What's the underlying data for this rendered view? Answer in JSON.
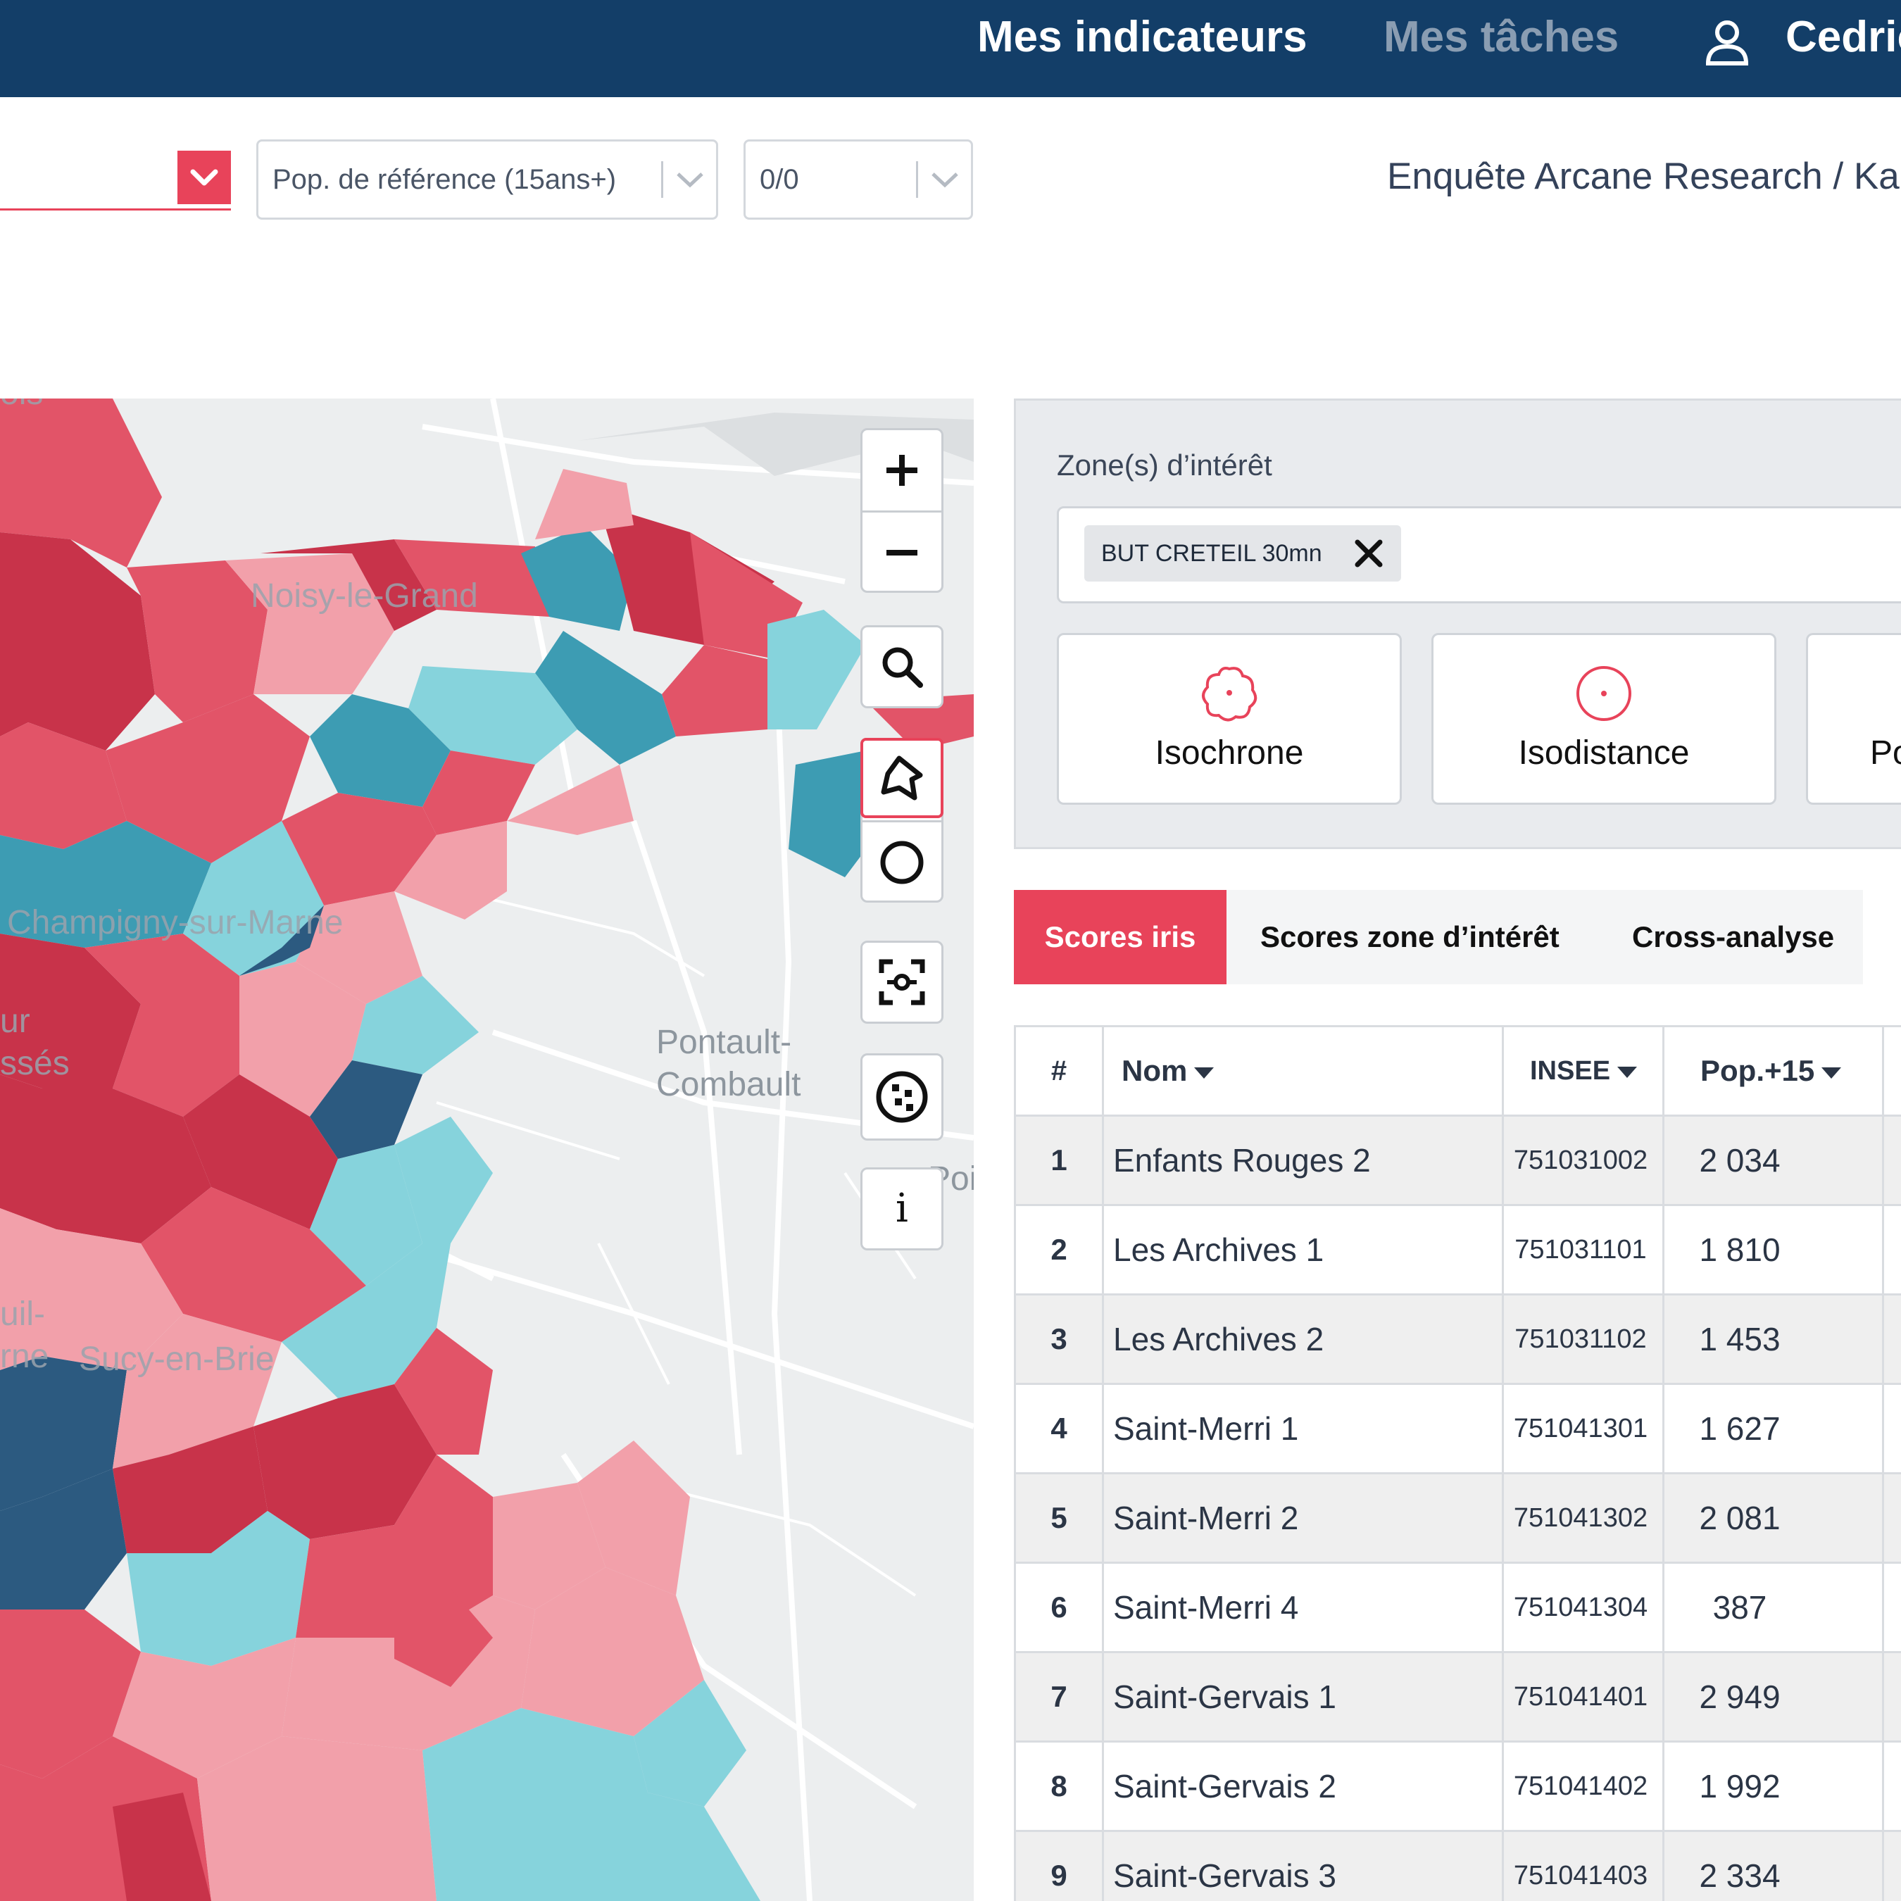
{
  "header": {
    "nav_indicators": "Mes indicateurs",
    "nav_tasks": "Mes tâches",
    "user_name": "Cedric"
  },
  "filters": {
    "population": "Pop. de référence (15ans+)",
    "counter": "0/0",
    "survey": "Enquête Arcane Research / Ka"
  },
  "map": {
    "places": {
      "noisy": "Noisy-le-Grand",
      "champigny": "Champigny-sur-Marne",
      "pontault_1": "Pontault-",
      "pontault_2": "Combault",
      "sucy": "Sucy-en-Brie",
      "partial_top": "ois",
      "partial_left1": "ur",
      "partial_left2": "ssés",
      "partial_left3": "uil-",
      "partial_left4": "rne",
      "partial_right": "Poi"
    },
    "info_label": "i"
  },
  "panel": {
    "zones_label": "Zone(s) d’intérêt",
    "chip_label": "BUT CRETEIL 30mn",
    "modes": [
      "Isochrone",
      "Isodistance",
      "Po"
    ]
  },
  "tabs": [
    "Scores iris",
    "Scores zone d’intérêt",
    "Cross-analyse"
  ],
  "table": {
    "headers": {
      "num": "#",
      "name": "Nom",
      "insee": "INSEE",
      "pop": "Pop.+15"
    },
    "rows": [
      {
        "num": "1",
        "name": "Enfants Rouges 2",
        "insee": "751031002",
        "pop": "2 034"
      },
      {
        "num": "2",
        "name": "Les Archives 1",
        "insee": "751031101",
        "pop": "1 810"
      },
      {
        "num": "3",
        "name": "Les Archives 2",
        "insee": "751031102",
        "pop": "1 453"
      },
      {
        "num": "4",
        "name": "Saint-Merri 1",
        "insee": "751041301",
        "pop": "1 627"
      },
      {
        "num": "5",
        "name": "Saint-Merri 2",
        "insee": "751041302",
        "pop": "2 081"
      },
      {
        "num": "6",
        "name": "Saint-Merri 4",
        "insee": "751041304",
        "pop": "387"
      },
      {
        "num": "7",
        "name": "Saint-Gervais 1",
        "insee": "751041401",
        "pop": "2 949"
      },
      {
        "num": "8",
        "name": "Saint-Gervais 2",
        "insee": "751041402",
        "pop": "1 992"
      },
      {
        "num": "9",
        "name": "Saint-Gervais 3",
        "insee": "751041403",
        "pop": "2 334"
      }
    ]
  },
  "colors": {
    "navy": "#133e68",
    "accent": "#e8435a",
    "dark_red": "#c8334a",
    "mid_red": "#e25468",
    "light_red": "#f2a0aa",
    "light_blue": "#86d3dc",
    "mid_blue": "#3d9cb3",
    "dark_blue": "#2c5a80"
  },
  "icons": [
    "user-icon",
    "chevron-down-icon",
    "plus-icon",
    "minus-icon",
    "search-icon",
    "polygon-icon",
    "circle-icon",
    "screenshot-icon",
    "dots-circle-icon",
    "info-icon",
    "close-icon",
    "isochrone-icon",
    "isodistance-icon",
    "sort-arrow-icon"
  ]
}
